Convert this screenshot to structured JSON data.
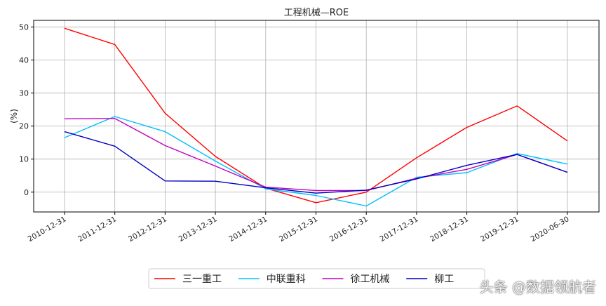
{
  "chart_data": {
    "type": "line",
    "title": "工程机械—ROE",
    "xlabel": "",
    "ylabel": "(%)",
    "categories": [
      "2010-12-31",
      "2011-12-31",
      "2012-12-31",
      "2013-12-31",
      "2014-12-31",
      "2015-12-31",
      "2016-12-31",
      "2017-12-31",
      "2018-12-31",
      "2019-12-31",
      "2020-06-30"
    ],
    "ylim": [
      -6,
      52
    ],
    "yticks": [
      0,
      10,
      20,
      30,
      40,
      50
    ],
    "grid": true,
    "legend_position": "bottom-center",
    "series": [
      {
        "name": "三一重工",
        "color": "#ff0000",
        "values": [
          49.6,
          44.7,
          23.9,
          10.8,
          1.2,
          -3.2,
          0.0,
          10.4,
          19.6,
          26.1,
          15.5
        ]
      },
      {
        "name": "中联重科",
        "color": "#00bfff",
        "values": [
          16.5,
          22.9,
          18.3,
          9.4,
          1.0,
          -1.0,
          -4.2,
          4.5,
          5.9,
          11.7,
          8.5
        ]
      },
      {
        "name": "徐工机械",
        "color": "#c000c0",
        "values": [
          22.2,
          22.3,
          14.1,
          7.9,
          1.5,
          0.5,
          0.5,
          4.2,
          6.9,
          11.4,
          6.0
        ]
      },
      {
        "name": "柳工",
        "color": "#0000c0",
        "values": [
          18.3,
          13.9,
          3.4,
          3.3,
          1.3,
          -0.3,
          0.6,
          4.0,
          8.1,
          11.4,
          6.0
        ]
      }
    ]
  },
  "watermark": "头条 @数据领航者"
}
